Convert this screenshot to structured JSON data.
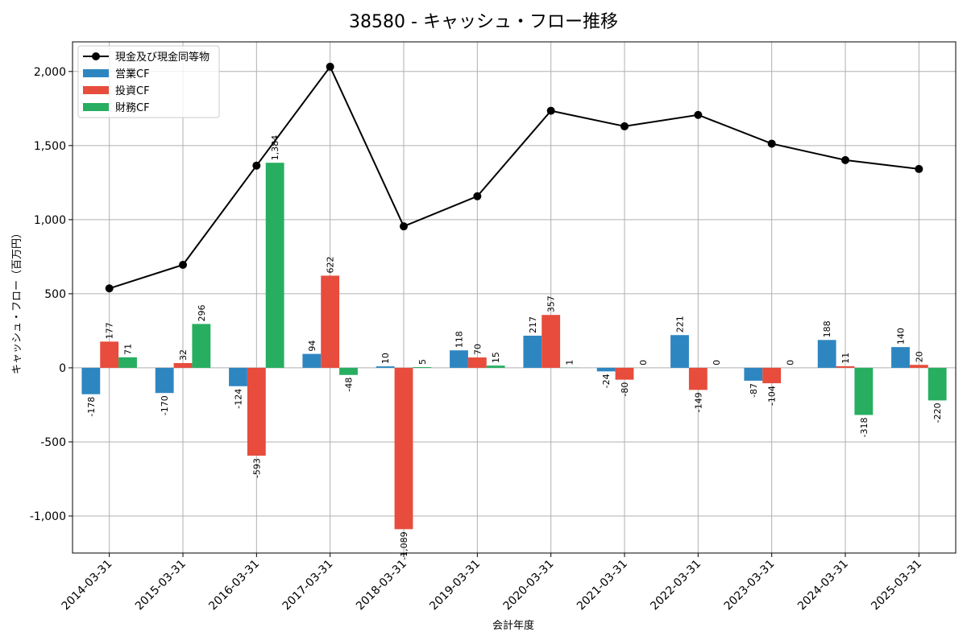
{
  "chart_data": {
    "type": "bar",
    "title": "38580 - キャッシュ・フロー推移",
    "xlabel": "会計年度",
    "ylabel": "キャッシュ・フロー（百万円）",
    "ylim": [
      -1250,
      2200
    ],
    "yticks": [
      -1000,
      -500,
      0,
      500,
      1000,
      1500,
      2000
    ],
    "ytick_labels": [
      "-1,000",
      "-500",
      "0",
      "500",
      "1,000",
      "1,500",
      "2,000"
    ],
    "grid": true,
    "legend_position": "top-left",
    "categories": [
      "2014-03-31",
      "2015-03-31",
      "2016-03-31",
      "2017-03-31",
      "2018-03-31",
      "2019-03-31",
      "2020-03-31",
      "2021-03-31",
      "2022-03-31",
      "2023-03-31",
      "2024-03-31",
      "2025-03-31"
    ],
    "series": [
      {
        "name": "営業CF",
        "kind": "bar",
        "color": "#2e86c1",
        "values": [
          -178,
          -170,
          -124,
          94,
          10,
          118,
          217,
          -24,
          221,
          -87,
          188,
          140
        ],
        "labels": [
          "-178",
          "-170",
          "-124",
          "94",
          "10",
          "118",
          "217",
          "-24",
          "221",
          "-87",
          "188",
          "140"
        ]
      },
      {
        "name": "投資CF",
        "kind": "bar",
        "color": "#e74c3c",
        "values": [
          177,
          32,
          -593,
          622,
          -1089,
          70,
          357,
          -80,
          -149,
          -104,
          11,
          20
        ],
        "labels": [
          "177",
          "32",
          "-593",
          "622",
          "-1,089",
          "70",
          "357",
          "-80",
          "-149",
          "-104",
          "11",
          "20"
        ]
      },
      {
        "name": "財務CF",
        "kind": "bar",
        "color": "#27ae60",
        "values": [
          71,
          296,
          1384,
          -48,
          5,
          15,
          1,
          0,
          0,
          0,
          -318,
          -220
        ],
        "labels": [
          "71",
          "296",
          "1,384",
          "-48",
          "5",
          "15",
          "1",
          "0",
          "0",
          "0",
          "-318",
          "-220"
        ]
      },
      {
        "name": "現金及び現金同等物",
        "kind": "line",
        "color": "#000000",
        "values": [
          536,
          695,
          1365,
          2032,
          955,
          1158,
          1735,
          1630,
          1707,
          1513,
          1402,
          1342
        ]
      }
    ],
    "legend": [
      "現金及び現金同等物",
      "営業CF",
      "投資CF",
      "財務CF"
    ]
  }
}
